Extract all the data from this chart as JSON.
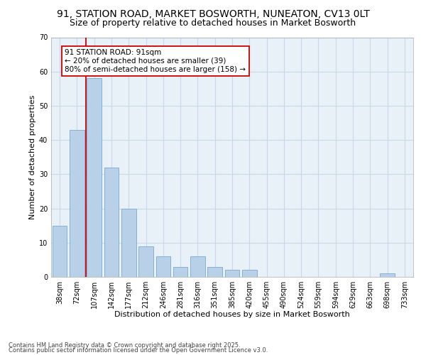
{
  "title1": "91, STATION ROAD, MARKET BOSWORTH, NUNEATON, CV13 0LT",
  "title2": "Size of property relative to detached houses in Market Bosworth",
  "xlabel": "Distribution of detached houses by size in Market Bosworth",
  "ylabel": "Number of detached properties",
  "categories": [
    "38sqm",
    "72sqm",
    "107sqm",
    "142sqm",
    "177sqm",
    "212sqm",
    "246sqm",
    "281sqm",
    "316sqm",
    "351sqm",
    "385sqm",
    "420sqm",
    "455sqm",
    "490sqm",
    "524sqm",
    "559sqm",
    "594sqm",
    "629sqm",
    "663sqm",
    "698sqm",
    "733sqm"
  ],
  "values": [
    15,
    43,
    58,
    32,
    20,
    9,
    6,
    3,
    6,
    3,
    2,
    2,
    0,
    0,
    0,
    0,
    0,
    0,
    0,
    1,
    0
  ],
  "bar_color": "#b8d0e8",
  "bar_edgecolor": "#7aaacf",
  "ylim": [
    0,
    70
  ],
  "yticks": [
    0,
    10,
    20,
    30,
    40,
    50,
    60,
    70
  ],
  "grid_color": "#c8d8e8",
  "bg_color": "#e8f0f8",
  "vline_x": 1.5,
  "vline_color": "#cc0000",
  "annotation_text": "91 STATION ROAD: 91sqm\n← 20% of detached houses are smaller (39)\n80% of semi-detached houses are larger (158) →",
  "footer1": "Contains HM Land Registry data © Crown copyright and database right 2025.",
  "footer2": "Contains public sector information licensed under the Open Government Licence v3.0.",
  "title_fontsize": 10,
  "title2_fontsize": 9,
  "axis_label_fontsize": 8,
  "tick_fontsize": 7,
  "annotation_fontsize": 7.5
}
